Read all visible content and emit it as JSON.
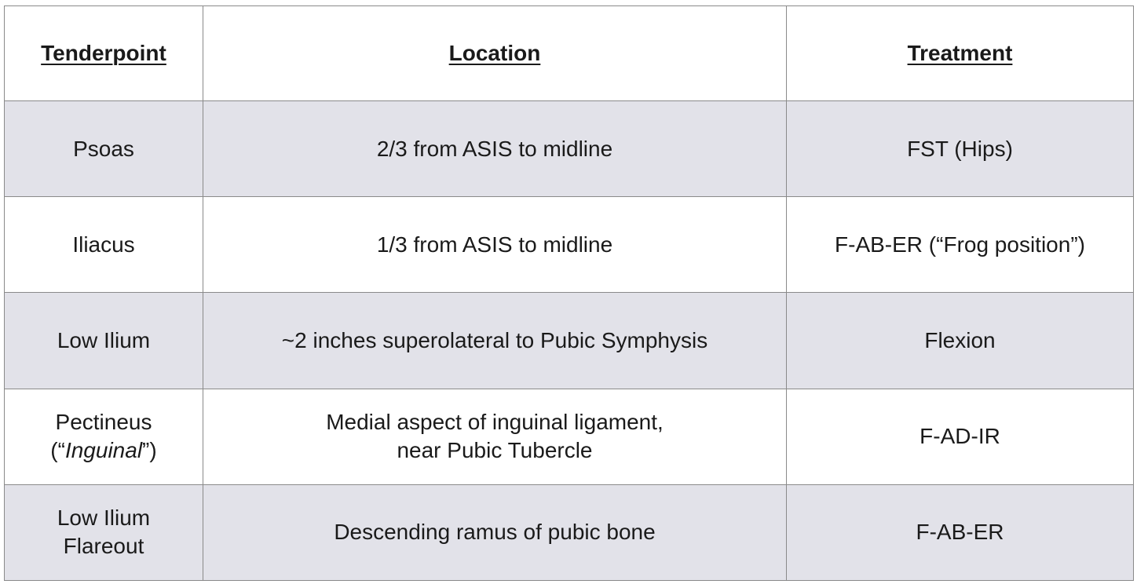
{
  "headers": {
    "tenderpoint": "Tenderpoint",
    "location": "Location",
    "treatment": "Treatment"
  },
  "rows": [
    {
      "tenderpoint": "Psoas",
      "location": "2/3 from ASIS to midline",
      "treatment": "FST (Hips)"
    },
    {
      "tenderpoint": "Iliacus",
      "location": "1/3 from ASIS to midline",
      "treatment": "F-AB-ER (“Frog position”)"
    },
    {
      "tenderpoint": "Low Ilium",
      "location": "~2 inches superolateral to Pubic Symphysis",
      "treatment": "Flexion"
    },
    {
      "tenderpoint_line1": "Pectineus",
      "tenderpoint_line2_open": "(“",
      "tenderpoint_line2_italic": "Inguinal",
      "tenderpoint_line2_close": "”)",
      "location_line1": "Medial aspect of inguinal ligament,",
      "location_line2": "near Pubic Tubercle",
      "treatment": "F-AD-IR"
    },
    {
      "tenderpoint_line1": "Low Ilium",
      "tenderpoint_line2": "Flareout",
      "location": "Descending ramus of pubic bone",
      "treatment": "F-AB-ER"
    }
  ],
  "colors": {
    "shaded_row": "#e2e2e9",
    "plain_row": "#ffffff",
    "border": "#8a8a8a"
  }
}
